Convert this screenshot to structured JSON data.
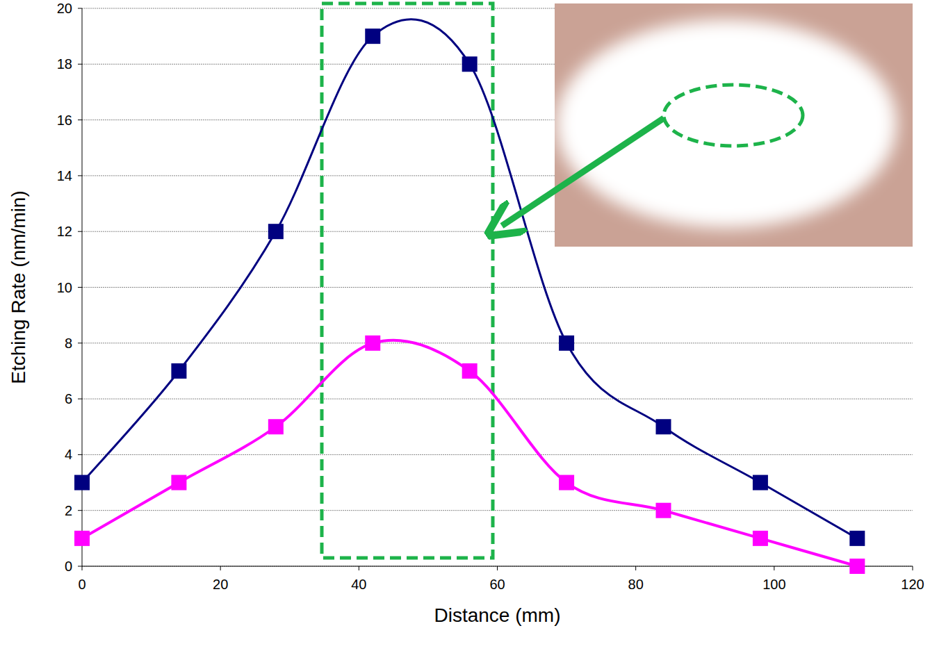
{
  "chart_data": {
    "type": "line",
    "x_label": "Distance (mm)",
    "y_label": "Etching Rate (nm/min)",
    "x": [
      0,
      14,
      28,
      42,
      56,
      70,
      84,
      98,
      112
    ],
    "series": [
      {
        "color": "#000080",
        "marker": "square",
        "values": [
          3,
          7,
          12,
          19,
          18,
          8,
          5,
          3,
          1
        ]
      },
      {
        "color": "#ff00ff",
        "marker": "square",
        "values": [
          1,
          3,
          5,
          8,
          7,
          3,
          2,
          1,
          0
        ]
      }
    ],
    "xlim": [
      0,
      120
    ],
    "xticks": [
      0,
      20,
      40,
      60,
      80,
      100,
      120
    ],
    "ylim": [
      0,
      20
    ],
    "yticks": [
      0,
      2,
      4,
      6,
      8,
      10,
      12,
      14,
      16,
      18,
      20
    ],
    "grid": true
  }
}
